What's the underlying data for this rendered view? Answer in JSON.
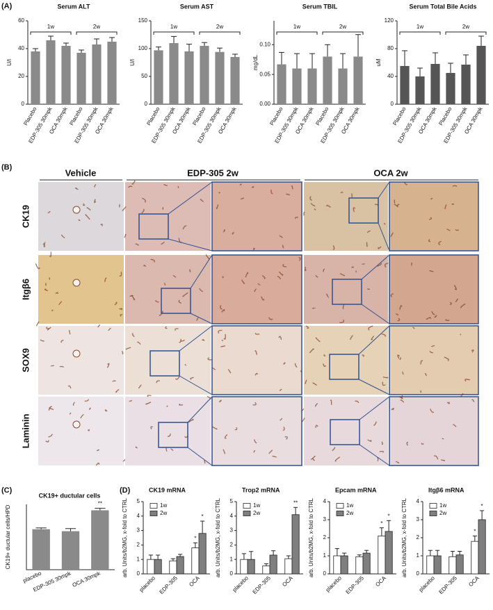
{
  "panels": [
    "(A)",
    "(B)",
    "(C)",
    "(D)"
  ],
  "histology": {
    "columns": [
      "Vehicle",
      "EDP-305 2w",
      "OCA 2w"
    ],
    "rows": [
      "CK19",
      "Itgβ6",
      "SOX9",
      "Laminin"
    ]
  },
  "chart_data": [
    {
      "type": "bar",
      "title": "Serum ALT",
      "y_label": "U/l",
      "groups": [
        "1w",
        "2w"
      ],
      "categories": [
        "Placebo",
        "EDP-305 30mpk",
        "OCA 30mpk",
        "Placebo",
        "EDP-305 30mpk",
        "OCA 30mpk"
      ],
      "values": [
        38,
        46,
        42,
        37,
        43,
        45
      ],
      "errors": [
        2,
        3,
        2,
        2,
        4,
        3
      ],
      "color": "#8a8a8a",
      "ylim": [
        0,
        60
      ],
      "yticks": [
        0,
        20,
        40,
        60
      ]
    },
    {
      "type": "bar",
      "title": "Serum AST",
      "y_label": "U/l",
      "groups": [
        "1w",
        "2w"
      ],
      "categories": [
        "Placebo",
        "EDP-305 30mpk",
        "OCA 30mpk",
        "Placebo",
        "EDP-305 30mpk",
        "OCA 30mpk"
      ],
      "values": [
        97,
        110,
        95,
        105,
        94,
        85
      ],
      "errors": [
        6,
        12,
        13,
        6,
        7,
        5
      ],
      "color": "#8a8a8a",
      "ylim": [
        0,
        150
      ],
      "yticks": [
        0,
        50,
        100,
        150
      ]
    },
    {
      "type": "bar",
      "title": "Serum TBIL",
      "y_label": "mg/dL",
      "groups": [
        "1w",
        "2w"
      ],
      "categories": [
        "Placebo",
        "EDP-305 30mpk",
        "OCA 30mpk",
        "Placebo",
        "EDP-305 30mpk",
        "OCA 30mpk"
      ],
      "values": [
        0.067,
        0.06,
        0.06,
        0.08,
        0.06,
        0.08
      ],
      "errors": [
        0.02,
        0.025,
        0.025,
        0.02,
        0.025,
        0.037
      ],
      "color": "#8a8a8a",
      "ylim": [
        0,
        0.14
      ],
      "yticks": [
        {
          "value": 0,
          "label": "0.00"
        },
        {
          "value": 0.05,
          "label": "0.05"
        },
        {
          "value": 0.1,
          "label": "0.10"
        }
      ]
    },
    {
      "type": "bar",
      "title": "Serum Total Bile Acids",
      "y_label": "uM",
      "groups": [
        "1w",
        "2w"
      ],
      "categories": [
        "Placebo",
        "EDP-305 30mpk",
        "OCA 30mpk",
        "Placebo",
        "EDP-305 30mpk",
        "OCA 30mpk"
      ],
      "values": [
        55,
        40,
        58,
        45,
        57,
        84
      ],
      "errors": [
        22,
        12,
        16,
        14,
        14,
        14
      ],
      "color": "#555555",
      "ylim": [
        0,
        120
      ],
      "yticks": [
        0,
        40,
        80,
        120
      ]
    },
    {
      "type": "bar",
      "title": "CK19+ ductular cells",
      "y_label": "CK19+ ductular cells/HPD",
      "categories": [
        "placebo",
        "EDP-305 30mpk",
        "OCA 30mpk"
      ],
      "values": [
        62,
        59,
        91
      ],
      "errors": [
        2,
        4,
        3
      ],
      "significance": [
        null,
        null,
        "**"
      ],
      "color": "#8a8a8a",
      "ylim": [
        0,
        100
      ]
    },
    {
      "type": "bar",
      "title": "CK19 mRNA",
      "y_label": "arb. Units/b2MG, x-fold to CTRL",
      "legend": "upper left",
      "categories": [
        "placebo",
        "EDP-305",
        "OCA"
      ],
      "ylim": [
        0,
        5
      ],
      "yticks": [
        0,
        1,
        2,
        3,
        4,
        5
      ],
      "series": [
        {
          "name": "1w",
          "color": "#ffffff",
          "values": [
            1.0,
            0.9,
            1.8
          ],
          "errors": [
            0.3,
            0.15,
            0.35
          ],
          "significance": [
            null,
            null,
            "*"
          ]
        },
        {
          "name": "2w",
          "color": "#7f7f7f",
          "values": [
            1.0,
            1.2,
            2.8
          ],
          "errors": [
            0.3,
            0.15,
            0.85
          ],
          "significance": [
            null,
            null,
            "*"
          ]
        }
      ]
    },
    {
      "type": "bar",
      "title": "Trop2 mRNA",
      "y_label": "arb. Units/b2MG, x-fold to CTRL",
      "legend": "upper left",
      "categories": [
        "placebo",
        "EDP-305",
        "OCA"
      ],
      "ylim": [
        0,
        5
      ],
      "yticks": [
        0,
        1,
        2,
        3,
        4,
        5
      ],
      "series": [
        {
          "name": "1w",
          "color": "#ffffff",
          "values": [
            1.0,
            0.55,
            1.05
          ],
          "errors": [
            0.4,
            0.15,
            0.2
          ],
          "significance": [
            null,
            null,
            null
          ]
        },
        {
          "name": "2w",
          "color": "#7f7f7f",
          "values": [
            1.0,
            1.3,
            4.1
          ],
          "errors": [
            0.55,
            0.3,
            0.5
          ],
          "significance": [
            null,
            null,
            "**"
          ]
        }
      ]
    },
    {
      "type": "bar",
      "title": "Epcam mRNA",
      "y_label": "arb. Units/b2MG, x-fold to CTRL",
      "legend": "upper left",
      "categories": [
        "placebo",
        "EDP-305",
        "OCA"
      ],
      "ylim": [
        0,
        4
      ],
      "yticks": [
        0,
        1,
        2,
        3,
        4
      ],
      "series": [
        {
          "name": "1w",
          "color": "#ffffff",
          "values": [
            1.0,
            0.95,
            2.1
          ],
          "errors": [
            0.4,
            0.1,
            0.45
          ],
          "significance": [
            null,
            null,
            "*"
          ]
        },
        {
          "name": "2w",
          "color": "#7f7f7f",
          "values": [
            1.0,
            1.15,
            2.35
          ],
          "errors": [
            0.15,
            0.15,
            0.6
          ],
          "significance": [
            null,
            null,
            "*"
          ]
        }
      ]
    },
    {
      "type": "bar",
      "title": "Itgβ6 mRNA",
      "y_label": "arb. Units/b2MG, x-fold to CTRL",
      "legend": "upper left",
      "categories": [
        "placebo",
        "EDP-305",
        "OCA"
      ],
      "ylim": [
        0,
        4
      ],
      "yticks": [
        0,
        1,
        2,
        3,
        4
      ],
      "series": [
        {
          "name": "1w",
          "color": "#ffffff",
          "values": [
            1.0,
            0.95,
            1.8
          ],
          "errors": [
            0.3,
            0.3,
            0.3
          ],
          "significance": [
            null,
            null,
            "*"
          ]
        },
        {
          "name": "2w",
          "color": "#7f7f7f",
          "values": [
            1.0,
            1.05,
            3.0
          ],
          "errors": [
            0.3,
            0.2,
            0.5
          ],
          "significance": [
            null,
            null,
            "*"
          ]
        }
      ]
    }
  ]
}
